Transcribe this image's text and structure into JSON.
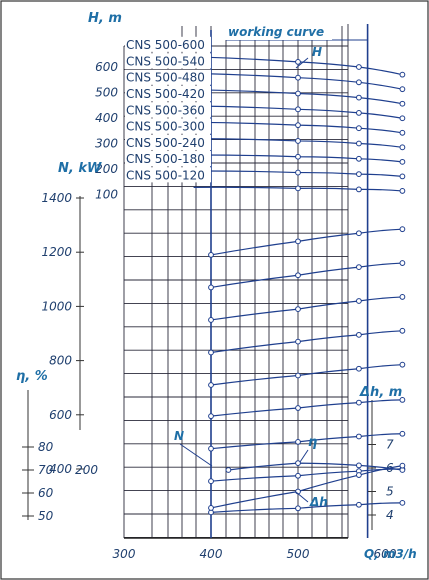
{
  "chart_data": {
    "type": "line",
    "title": "working curve",
    "x_axis": {
      "label": "Q, m3/h",
      "ticks": [
        "300",
        "400",
        "500",
        "600"
      ],
      "range": [
        250,
        650
      ]
    },
    "H_axis": {
      "label": "H, m",
      "ticks": [
        "100",
        "200",
        "300",
        "400",
        "500",
        "600"
      ]
    },
    "N_axis": {
      "label": "N, kW",
      "ticks": [
        "400",
        "600",
        "800",
        "1000",
        "1200",
        "1400"
      ]
    },
    "eta_axis": {
      "label": "η, %",
      "ticks": [
        "50",
        "60",
        "70",
        "80"
      ]
    },
    "dh_axis": {
      "label": "Δh, m",
      "ticks": [
        "4",
        "5",
        "6",
        "7"
      ]
    },
    "eta_H_label": "200",
    "curve_labels": {
      "H": "H",
      "N": "N",
      "eta": "η",
      "dh": "Δh"
    },
    "series_H": [
      {
        "name": "CNS 500-600",
        "points": [
          [
            380,
            640
          ],
          [
            500,
            620
          ],
          [
            570,
            600
          ],
          [
            620,
            570
          ]
        ]
      },
      {
        "name": "CNS 500-540",
        "points": [
          [
            380,
            575
          ],
          [
            500,
            558
          ],
          [
            570,
            540
          ],
          [
            620,
            513
          ]
        ]
      },
      {
        "name": "CNS 500-480",
        "points": [
          [
            380,
            511
          ],
          [
            500,
            496
          ],
          [
            570,
            480
          ],
          [
            620,
            456
          ]
        ]
      },
      {
        "name": "CNS 500-420",
        "points": [
          [
            380,
            447
          ],
          [
            500,
            434
          ],
          [
            570,
            420
          ],
          [
            620,
            399
          ]
        ]
      },
      {
        "name": "CNS 500-360",
        "points": [
          [
            380,
            383
          ],
          [
            500,
            372
          ],
          [
            570,
            360
          ],
          [
            620,
            342
          ]
        ]
      },
      {
        "name": "CNS 500-300",
        "points": [
          [
            380,
            319
          ],
          [
            500,
            310
          ],
          [
            570,
            300
          ],
          [
            620,
            285
          ]
        ]
      },
      {
        "name": "CNS 500-240",
        "points": [
          [
            380,
            255
          ],
          [
            500,
            248
          ],
          [
            570,
            240
          ],
          [
            620,
            228
          ]
        ]
      },
      {
        "name": "CNS 500-180",
        "points": [
          [
            380,
            192
          ],
          [
            500,
            186
          ],
          [
            570,
            180
          ],
          [
            620,
            171
          ]
        ]
      },
      {
        "name": "CNS 500-120",
        "points": [
          [
            380,
            128
          ],
          [
            500,
            124
          ],
          [
            570,
            120
          ],
          [
            620,
            114
          ]
        ]
      }
    ],
    "series_N": [
      {
        "name": "CNS 500-600",
        "points": [
          [
            400,
            1190
          ],
          [
            500,
            1240
          ],
          [
            570,
            1270
          ],
          [
            620,
            1285
          ]
        ]
      },
      {
        "name": "CNS 500-540",
        "points": [
          [
            400,
            1070
          ],
          [
            500,
            1115
          ],
          [
            570,
            1145
          ],
          [
            620,
            1160
          ]
        ]
      },
      {
        "name": "CNS 500-480",
        "points": [
          [
            400,
            950
          ],
          [
            500,
            990
          ],
          [
            570,
            1020
          ],
          [
            620,
            1035
          ]
        ]
      },
      {
        "name": "CNS 500-420",
        "points": [
          [
            400,
            830
          ],
          [
            500,
            870
          ],
          [
            570,
            895
          ],
          [
            620,
            910
          ]
        ]
      },
      {
        "name": "CNS 500-360",
        "points": [
          [
            400,
            710
          ],
          [
            500,
            745
          ],
          [
            570,
            770
          ],
          [
            620,
            785
          ]
        ]
      },
      {
        "name": "CNS 500-300",
        "points": [
          [
            400,
            595
          ],
          [
            500,
            625
          ],
          [
            570,
            645
          ],
          [
            620,
            655
          ]
        ]
      },
      {
        "name": "CNS 500-240",
        "points": [
          [
            400,
            475
          ],
          [
            500,
            500
          ],
          [
            570,
            520
          ],
          [
            620,
            530
          ]
        ]
      },
      {
        "name": "CNS 500-180",
        "points": [
          [
            400,
            355
          ],
          [
            500,
            375
          ],
          [
            570,
            392
          ],
          [
            620,
            400
          ]
        ]
      },
      {
        "name": "CNS 500-120",
        "points": [
          [
            400,
            240
          ],
          [
            500,
            255
          ],
          [
            570,
            268
          ],
          [
            620,
            275
          ]
        ]
      }
    ],
    "series_eta": {
      "name": "η",
      "points": [
        [
          420,
          70
        ],
        [
          500,
          73
        ],
        [
          570,
          72
        ],
        [
          620,
          70
        ]
      ]
    },
    "series_dh": {
      "name": "Δh",
      "points": [
        [
          400,
          4.3
        ],
        [
          500,
          5.0
        ],
        [
          570,
          5.7
        ],
        [
          620,
          6.1
        ]
      ]
    },
    "working_range_Q": [
      400,
      580
    ]
  }
}
